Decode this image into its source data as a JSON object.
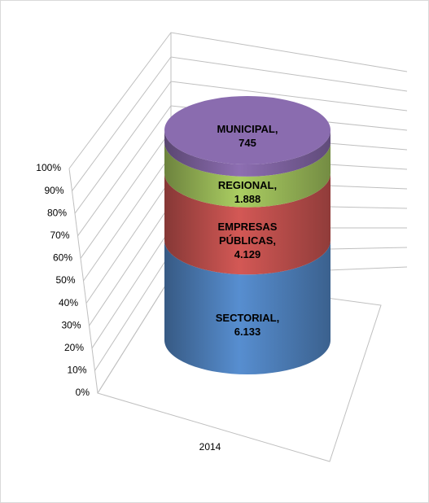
{
  "chart_data": {
    "type": "bar3d_cylinder",
    "stacking": "percent",
    "categories": [
      "2014"
    ],
    "series": [
      {
        "name": "SECTORIAL",
        "color": "#4f81bd",
        "values": [
          6133
        ],
        "value_labels": [
          "6.133"
        ]
      },
      {
        "name": "EMPRESAS PÚBLICAS",
        "color": "#c0504d",
        "values": [
          4129
        ],
        "value_labels": [
          "4.129"
        ]
      },
      {
        "name": "REGIONAL",
        "color": "#9bbb59",
        "values": [
          1888
        ],
        "value_labels": [
          "1.888"
        ]
      },
      {
        "name": "MUNICIPAL",
        "color": "#8064a2",
        "values": [
          745
        ],
        "value_labels": [
          "745"
        ]
      }
    ],
    "data_label_separator": ",",
    "ylim": [
      0,
      100
    ],
    "yticks": [
      {
        "value": 0,
        "label": "0%"
      },
      {
        "value": 10,
        "label": "10%"
      },
      {
        "value": 20,
        "label": "20%"
      },
      {
        "value": 30,
        "label": "30%"
      },
      {
        "value": 40,
        "label": "40%"
      },
      {
        "value": 50,
        "label": "50%"
      },
      {
        "value": 60,
        "label": "60%"
      },
      {
        "value": 70,
        "label": "70%"
      },
      {
        "value": 80,
        "label": "80%"
      },
      {
        "value": 90,
        "label": "90%"
      },
      {
        "value": 100,
        "label": "100%"
      }
    ],
    "grid": true
  }
}
